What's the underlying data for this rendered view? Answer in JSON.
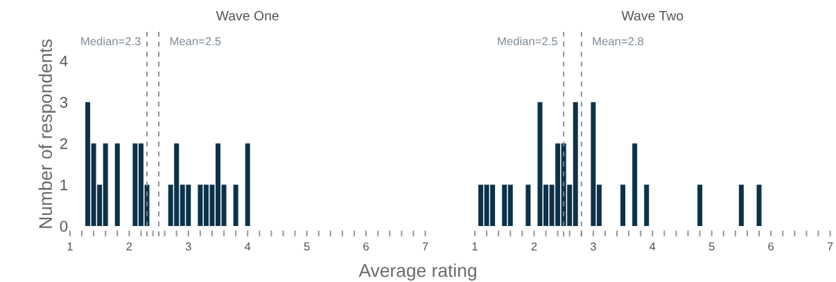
{
  "chart_data": [
    {
      "type": "histogram",
      "title": "Wave One",
      "ylabel": "Number of respondents",
      "xlabel": "Average rating",
      "color": "#0b3249",
      "bins": [
        1.25,
        1.35,
        1.45,
        1.55,
        1.65,
        1.75,
        1.85,
        1.95,
        2.05,
        2.15,
        2.25,
        2.35,
        2.45,
        2.55,
        2.65,
        2.75,
        2.85,
        2.95,
        3.05,
        3.15,
        3.25,
        3.35,
        3.45,
        3.55,
        3.65,
        3.75,
        3.85,
        3.95,
        4.05
      ],
      "values": [
        3,
        2,
        1,
        2,
        0,
        2,
        0,
        0,
        2,
        2,
        1,
        0,
        0,
        0,
        1,
        2,
        1,
        1,
        0,
        1,
        1,
        1,
        2,
        1,
        0,
        1,
        0,
        2
      ],
      "xlim": [
        1,
        7
      ],
      "ylim": [
        -0.25,
        4.7
      ],
      "xticks": [
        1,
        {
          "value": 1.2,
          "label": null
        },
        {
          "value": 1.4,
          "label": null
        },
        {
          "value": 1.6,
          "label": null
        },
        {
          "value": 1.8,
          "label": null
        },
        2,
        {
          "value": 2.2,
          "label": null
        },
        {
          "value": 2.4,
          "label": null
        },
        {
          "value": 2.6,
          "label": null
        },
        {
          "value": 2.8,
          "label": null
        },
        3,
        {
          "value": 3.2,
          "label": null
        },
        {
          "value": 3.4,
          "label": null
        },
        {
          "value": 3.6,
          "label": null
        },
        {
          "value": 3.8,
          "label": null
        },
        4,
        {
          "value": 4.2,
          "label": null
        },
        {
          "value": 4.4,
          "label": null
        },
        {
          "value": 4.6,
          "label": null
        },
        {
          "value": 4.8,
          "label": null
        },
        5,
        {
          "value": 5.2,
          "label": null
        },
        {
          "value": 5.4,
          "label": null
        },
        {
          "value": 5.6,
          "label": null
        },
        {
          "value": 5.8,
          "label": null
        },
        6,
        {
          "value": 6.2,
          "label": null
        },
        {
          "value": 6.4,
          "label": null
        },
        {
          "value": 6.6,
          "label": null
        },
        {
          "value": 6.8,
          "label": null
        },
        7
      ],
      "yticks": [
        0,
        1,
        2,
        3,
        4
      ],
      "ref_lines": [
        {
          "axis": "x",
          "value": 2.3,
          "label": "Median=2.3",
          "color": "#7f8791",
          "line_style": "dashed"
        },
        {
          "axis": "x",
          "value": 2.5,
          "label": "Mean=2.5",
          "color": "#7f8791",
          "line_style": "dashed"
        }
      ],
      "grid": false
    },
    {
      "type": "histogram",
      "title": "Wave Two",
      "color": "#0b3249",
      "bins": [
        1.05,
        1.15,
        1.25,
        1.35,
        1.45,
        1.55,
        1.65,
        1.75,
        1.85,
        1.95,
        2.05,
        2.15,
        2.25,
        2.35,
        2.45,
        2.55,
        2.65,
        2.75,
        2.85,
        2.95,
        3.05,
        3.15,
        3.25,
        3.35,
        3.45,
        3.55,
        3.65,
        3.75,
        3.85,
        3.95,
        4.05,
        4.15,
        4.25,
        4.35,
        4.45,
        4.55,
        4.65,
        4.75,
        4.85,
        4.95,
        5.05,
        5.15,
        5.25,
        5.35,
        5.45,
        5.55,
        5.65,
        5.75,
        5.85
      ],
      "values": [
        1,
        1,
        1,
        0,
        1,
        1,
        0,
        0,
        1,
        0,
        3,
        1,
        1,
        2,
        2,
        1,
        3,
        0,
        0,
        3,
        1,
        0,
        0,
        0,
        1,
        0,
        2,
        0,
        1,
        0,
        0,
        0,
        0,
        0,
        0,
        0,
        0,
        1,
        0,
        0,
        0,
        0,
        0,
        0,
        1,
        0,
        0,
        1
      ],
      "xlim": [
        1,
        7
      ],
      "ylim": [
        -0.25,
        4.7
      ],
      "xticks": [
        1,
        {
          "value": 1.2,
          "label": null
        },
        {
          "value": 1.4,
          "label": null
        },
        {
          "value": 1.6,
          "label": null
        },
        {
          "value": 1.8,
          "label": null
        },
        2,
        {
          "value": 2.2,
          "label": null
        },
        {
          "value": 2.4,
          "label": null
        },
        {
          "value": 2.6,
          "label": null
        },
        {
          "value": 2.8,
          "label": null
        },
        3,
        {
          "value": 3.2,
          "label": null
        },
        {
          "value": 3.4,
          "label": null
        },
        {
          "value": 3.6,
          "label": null
        },
        {
          "value": 3.8,
          "label": null
        },
        4,
        {
          "value": 4.2,
          "label": null
        },
        {
          "value": 4.4,
          "label": null
        },
        {
          "value": 4.6,
          "label": null
        },
        {
          "value": 4.8,
          "label": null
        },
        5,
        {
          "value": 5.2,
          "label": null
        },
        {
          "value": 5.4,
          "label": null
        },
        {
          "value": 5.6,
          "label": null
        },
        {
          "value": 5.8,
          "label": null
        },
        6,
        {
          "value": 6.2,
          "label": null
        },
        {
          "value": 6.4,
          "label": null
        },
        {
          "value": 6.6,
          "label": null
        },
        {
          "value": 6.8,
          "label": null
        },
        7
      ],
      "yticks": [
        0,
        1,
        2,
        3,
        4
      ],
      "tick_labels": "x",
      "ref_lines": [
        {
          "axis": "x",
          "value": 2.5,
          "label": "Median=2.5",
          "color": "#7f8791",
          "line_style": "dashed"
        },
        {
          "axis": "x",
          "value": 2.8,
          "label": "Mean=2.8",
          "color": "#7f8791",
          "line_style": "dashed"
        }
      ],
      "grid": false
    }
  ]
}
